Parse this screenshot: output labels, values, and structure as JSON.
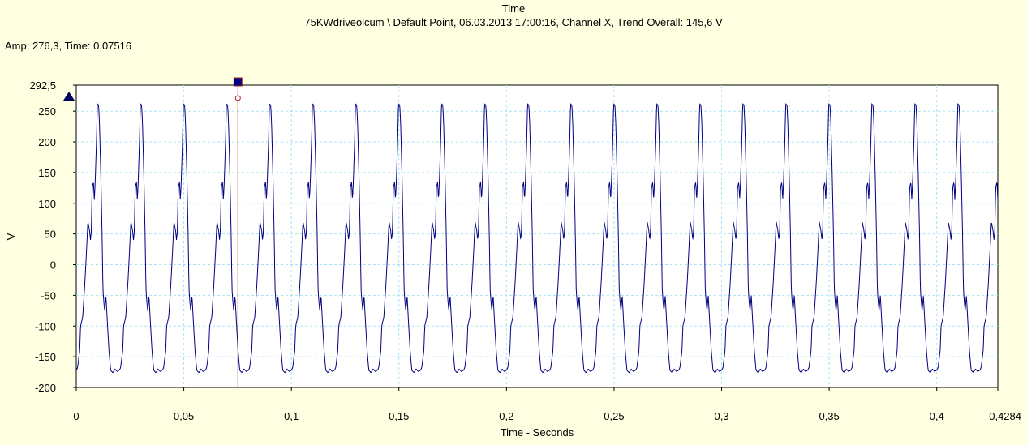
{
  "header": {
    "title": "Time",
    "subtitle": "75KWdriveolcum \\ Default Point, 06.03.2013 17:00:16, Channel X, Trend Overall: 145,6 V",
    "cursor_readout": "Amp: 276,3, Time: 0,07516"
  },
  "colors": {
    "background": "#ffffe1",
    "plot_background": "#ffffff",
    "trace": "#000080",
    "grid": "#a6e3f2",
    "cursor": "#b22222",
    "marker": "#000060"
  },
  "chart_data": {
    "type": "line",
    "title": "Time",
    "xlabel": "Time - Seconds",
    "ylabel": "V",
    "xlim": [
      0,
      0.4284
    ],
    "ylim": [
      -200,
      292.5
    ],
    "x_ticks": [
      "0",
      "0,05",
      "0,1",
      "0,15",
      "0,2",
      "0,25",
      "0,3",
      "0,35",
      "0,4",
      "0,4284"
    ],
    "x_tick_values": [
      0,
      0.05,
      0.1,
      0.15,
      0.2,
      0.25,
      0.3,
      0.35,
      0.4,
      0.4284
    ],
    "y_ticks": [
      "292,5",
      "250",
      "200",
      "150",
      "100",
      "50",
      "0",
      "-50",
      "-100",
      "-150",
      "-200"
    ],
    "y_tick_values": [
      292.5,
      250,
      200,
      150,
      100,
      50,
      0,
      -50,
      -100,
      -150,
      -200
    ],
    "grid": true,
    "cursor": {
      "time": 0.07516,
      "amplitude": 276.3
    },
    "series": [
      {
        "period": 0.02,
        "waveform_one_period": {
          "phase": [
            0,
            0.03,
            0.08,
            0.1,
            0.15,
            0.2,
            0.24,
            0.27,
            0.31,
            0.33,
            0.35,
            0.37,
            0.4,
            0.42,
            0.44,
            0.47,
            0.49,
            0.52,
            0.54,
            0.57,
            0.6,
            0.62,
            0.64,
            0.66,
            0.69,
            0.72,
            0.76,
            0.8,
            0.85,
            0.9,
            0.95,
            1.0
          ],
          "value": [
            -172,
            -168,
            -140,
            -100,
            -85,
            -30,
            25,
            70,
            55,
            40,
            55,
            125,
            135,
            105,
            135,
            200,
            262,
            260,
            230,
            150,
            50,
            -40,
            -60,
            -75,
            -50,
            -90,
            -140,
            -172,
            -176,
            -170,
            -174,
            -172
          ]
        }
      }
    ]
  }
}
